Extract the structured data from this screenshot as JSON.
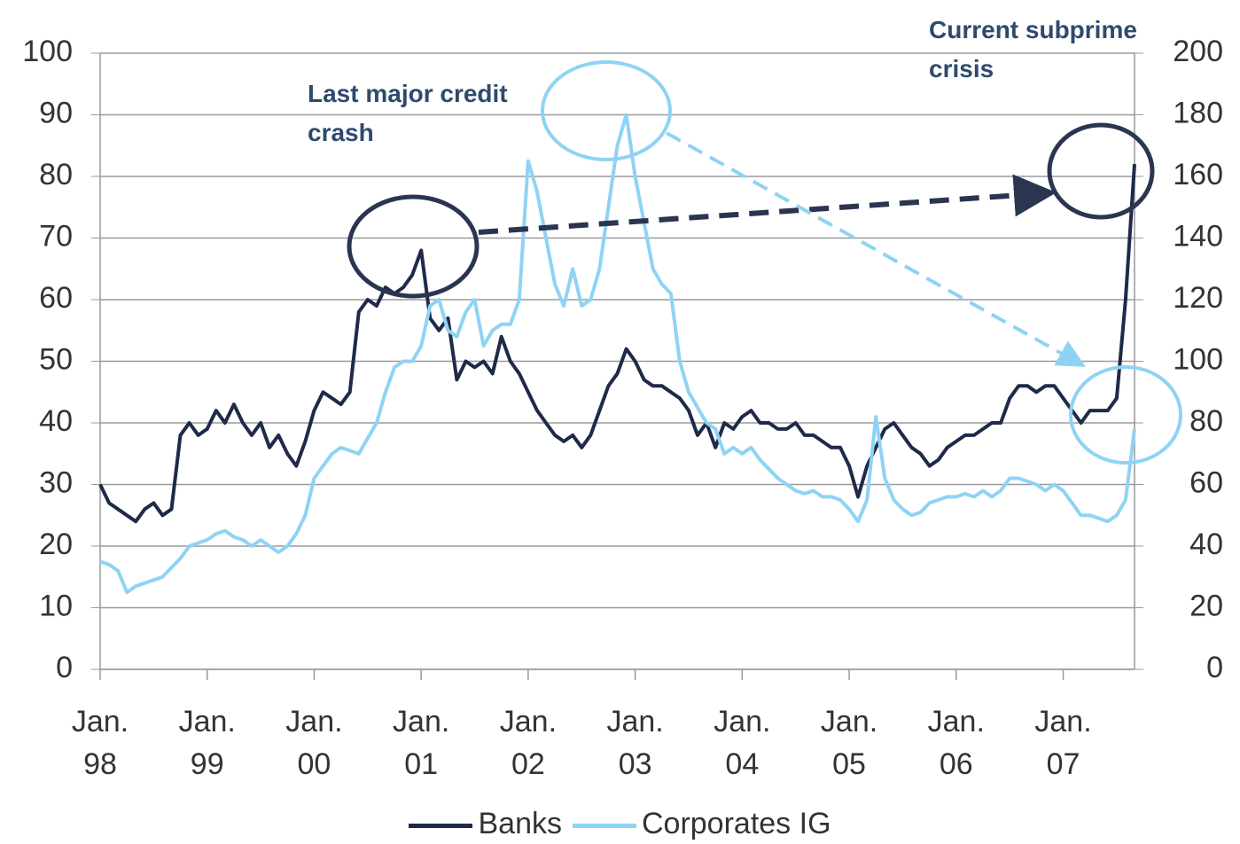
{
  "chart_data": {
    "type": "line",
    "x": [
      "1998-01",
      "1998-02",
      "1998-03",
      "1998-04",
      "1998-05",
      "1998-06",
      "1998-07",
      "1998-08",
      "1998-09",
      "1998-10",
      "1998-11",
      "1998-12",
      "1999-01",
      "1999-02",
      "1999-03",
      "1999-04",
      "1999-05",
      "1999-06",
      "1999-07",
      "1999-08",
      "1999-09",
      "1999-10",
      "1999-11",
      "1999-12",
      "2000-01",
      "2000-02",
      "2000-03",
      "2000-04",
      "2000-05",
      "2000-06",
      "2000-07",
      "2000-08",
      "2000-09",
      "2000-10",
      "2000-11",
      "2000-12",
      "2001-01",
      "2001-02",
      "2001-03",
      "2001-04",
      "2001-05",
      "2001-06",
      "2001-07",
      "2001-08",
      "2001-09",
      "2001-10",
      "2001-11",
      "2001-12",
      "2002-01",
      "2002-02",
      "2002-03",
      "2002-04",
      "2002-05",
      "2002-06",
      "2002-07",
      "2002-08",
      "2002-09",
      "2002-10",
      "2002-11",
      "2002-12",
      "2003-01",
      "2003-02",
      "2003-03",
      "2003-04",
      "2003-05",
      "2003-06",
      "2003-07",
      "2003-08",
      "2003-09",
      "2003-10",
      "2003-11",
      "2003-12",
      "2004-01",
      "2004-02",
      "2004-03",
      "2004-04",
      "2004-05",
      "2004-06",
      "2004-07",
      "2004-08",
      "2004-09",
      "2004-10",
      "2004-11",
      "2004-12",
      "2005-01",
      "2005-02",
      "2005-03",
      "2005-04",
      "2005-05",
      "2005-06",
      "2005-07",
      "2005-08",
      "2005-09",
      "2005-10",
      "2005-11",
      "2005-12",
      "2006-01",
      "2006-02",
      "2006-03",
      "2006-04",
      "2006-05",
      "2006-06",
      "2006-07",
      "2006-08",
      "2006-09",
      "2006-10",
      "2006-11",
      "2006-12",
      "2007-01",
      "2007-02",
      "2007-03",
      "2007-04",
      "2007-05",
      "2007-06",
      "2007-07",
      "2007-08",
      "2007-09"
    ],
    "series": [
      {
        "name": "Banks",
        "color": "#1e2a48",
        "axis": "y",
        "values": [
          30,
          27,
          26,
          25,
          24,
          26,
          27,
          25,
          26,
          38,
          40,
          38,
          39,
          42,
          40,
          43,
          40,
          38,
          40,
          36,
          38,
          35,
          33,
          37,
          42,
          45,
          44,
          43,
          45,
          58,
          60,
          59,
          62,
          61,
          62,
          64,
          68,
          57,
          55,
          57,
          47,
          50,
          49,
          50,
          48,
          54,
          50,
          48,
          45,
          42,
          40,
          38,
          37,
          38,
          36,
          38,
          42,
          46,
          48,
          52,
          50,
          47,
          46,
          46,
          45,
          44,
          42,
          38,
          40,
          36,
          40,
          39,
          41,
          42,
          40,
          40,
          39,
          39,
          40,
          38,
          38,
          37,
          36,
          36,
          33,
          28,
          33,
          36,
          39,
          40,
          38,
          36,
          35,
          33,
          34,
          36,
          37,
          38,
          38,
          39,
          40,
          40,
          44,
          46,
          46,
          45,
          46,
          46,
          44,
          42,
          40,
          42,
          42,
          42,
          44,
          60,
          82
        ]
      },
      {
        "name": "Corporates IG",
        "color": "#8fd3f4",
        "axis": "y2",
        "values": [
          35,
          34,
          32,
          25,
          27,
          28,
          29,
          30,
          33,
          36,
          40,
          41,
          42,
          44,
          45,
          43,
          42,
          40,
          42,
          40,
          38,
          40,
          44,
          50,
          62,
          66,
          70,
          72,
          71,
          70,
          75,
          80,
          90,
          98,
          100,
          100,
          105,
          118,
          120,
          110,
          108,
          116,
          120,
          105,
          110,
          112,
          112,
          120,
          165,
          155,
          140,
          125,
          118,
          130,
          118,
          120,
          130,
          150,
          170,
          180,
          160,
          145,
          130,
          125,
          122,
          100,
          90,
          85,
          80,
          78,
          70,
          72,
          70,
          72,
          68,
          65,
          62,
          60,
          58,
          57,
          58,
          56,
          56,
          55,
          52,
          48,
          55,
          82,
          62,
          55,
          52,
          50,
          51,
          54,
          55,
          56,
          56,
          57,
          56,
          58,
          56,
          58,
          62,
          62,
          61,
          60,
          58,
          60,
          58,
          54,
          50,
          50,
          49,
          48,
          50,
          55,
          78
        ]
      }
    ],
    "xlim": [
      "1998-01",
      "2007-09"
    ],
    "xticks": [
      {
        "value": "1998-01",
        "label": "Jan. 98"
      },
      {
        "value": "1999-01",
        "label": "Jan. 99"
      },
      {
        "value": "2000-01",
        "label": "Jan. 00"
      },
      {
        "value": "2001-01",
        "label": "Jan. 01"
      },
      {
        "value": "2002-01",
        "label": "Jan. 02"
      },
      {
        "value": "2003-01",
        "label": "Jan. 03"
      },
      {
        "value": "2004-01",
        "label": "Jan. 04"
      },
      {
        "value": "2005-01",
        "label": "Jan. 05"
      },
      {
        "value": "2006-01",
        "label": "Jan. 06"
      },
      {
        "value": "2007-01",
        "label": "Jan. 07"
      }
    ],
    "ylim": [
      0,
      100
    ],
    "yticks": [
      0,
      10,
      20,
      30,
      40,
      50,
      60,
      70,
      80,
      90,
      100
    ],
    "y2lim": [
      0,
      200
    ],
    "y2ticks": [
      0,
      20,
      40,
      60,
      80,
      100,
      120,
      140,
      160,
      180,
      200
    ],
    "grid": true,
    "annotations": [
      "Last major credit crash",
      "Current subprime crisis"
    ]
  }
}
